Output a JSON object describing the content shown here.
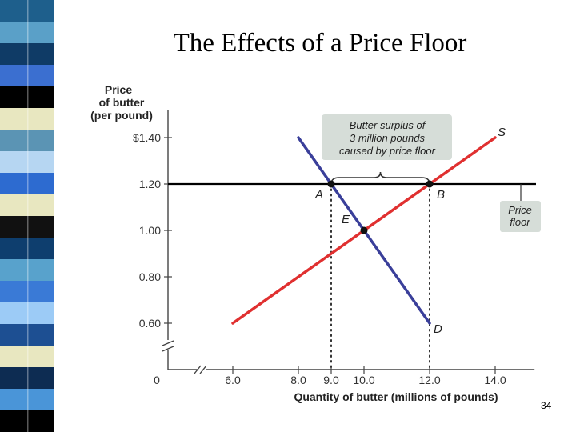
{
  "slide": {
    "title": "The Effects of a Price Floor",
    "number": "34"
  },
  "colors": {
    "background": "#ffffff",
    "supply": "#e03030",
    "demand": "#3a3f9a",
    "price_floor_line": "#000000",
    "callout_fill": "#d6ddd8",
    "text": "#222222"
  },
  "decor_stripe": {
    "colors": [
      "#1e5f8c",
      "#5aa0c8",
      "#0f3b66",
      "#3b6fd0",
      "#000000",
      "#e8e7c0",
      "#5b94b4",
      "#b6d6f2",
      "#2d6bd0",
      "#e8e7c0",
      "#111111",
      "#0e3e6e",
      "#58a2cc",
      "#3a7ad6",
      "#9ccbf6",
      "#1d4f92",
      "#e8e7c0",
      "#0d2c52",
      "#4a95d8",
      "#000000"
    ]
  },
  "chart_data": {
    "type": "line",
    "ylabel": [
      "Price",
      "of butter",
      "(per pound)"
    ],
    "xlabel": "Quantity of butter (millions of pounds)",
    "xlim": [
      6,
      15.2
    ],
    "ylim": [
      0.5,
      1.52
    ],
    "y_ticks": [
      {
        "value": 1.4,
        "label": "$1.40"
      },
      {
        "value": 1.2,
        "label": "1.20"
      },
      {
        "value": 1.0,
        "label": "1.00"
      },
      {
        "value": 0.8,
        "label": "0.80"
      },
      {
        "value": 0.6,
        "label": "0.60"
      }
    ],
    "y_origin_label": "0",
    "x_ticks": [
      {
        "value": 6.0,
        "label": "6.0"
      },
      {
        "value": 8.0,
        "label": "8.0"
      },
      {
        "value": 9.0,
        "label": "9.0"
      },
      {
        "value": 10.0,
        "label": "10.0"
      },
      {
        "value": 12.0,
        "label": "12.0"
      },
      {
        "value": 14.0,
        "label": "14.0"
      }
    ],
    "series": [
      {
        "name": "S",
        "points": [
          [
            6.0,
            0.6
          ],
          [
            14.0,
            1.4
          ]
        ]
      },
      {
        "name": "D",
        "points": [
          [
            8.0,
            1.4
          ],
          [
            12.0,
            0.6
          ]
        ]
      }
    ],
    "price_floor": {
      "value": 1.2,
      "x_range": [
        6.0,
        15.0
      ],
      "label": "Price floor"
    },
    "points": [
      {
        "label": "A",
        "x": 9.0,
        "y": 1.2
      },
      {
        "label": "B",
        "x": 12.0,
        "y": 1.2
      },
      {
        "label": "E",
        "x": 10.0,
        "y": 1.0
      }
    ],
    "dotted_guides": [
      {
        "x": 9.0,
        "y": 1.2
      },
      {
        "x": 12.0,
        "y": 1.2
      }
    ],
    "annotations": {
      "surplus_label": [
        "Butter surplus of",
        "3 million pounds",
        "caused by price floor"
      ],
      "supply_label": "S",
      "demand_label": "D"
    }
  }
}
